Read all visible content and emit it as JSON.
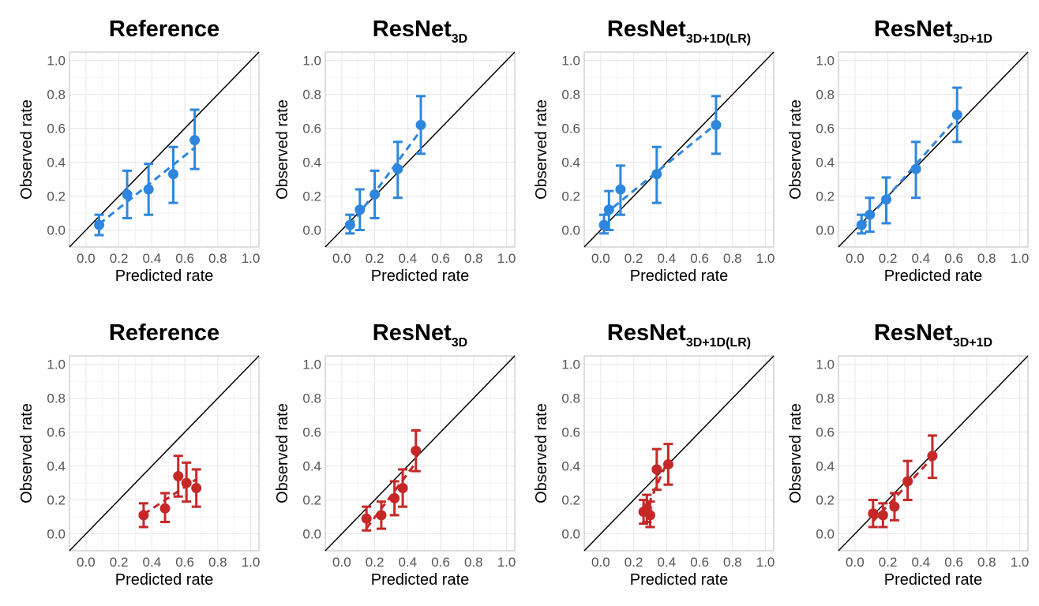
{
  "chart_data": [
    {
      "type": "scatter",
      "title": "Reference",
      "title_sub": "",
      "xlabel": "Predicted rate",
      "ylabel": "Observed rate",
      "xlim": [
        -0.1,
        1.05
      ],
      "ylim": [
        -0.1,
        1.05
      ],
      "xticks": [
        "0.0",
        "0.2",
        "0.4",
        "0.6",
        "0.8",
        "1.0"
      ],
      "yticks": [
        "0.0",
        "0.2",
        "0.4",
        "0.6",
        "0.8",
        "1.0"
      ],
      "grid": true,
      "color": "#2E86DE",
      "series": [
        {
          "x": [
            0.08,
            0.25,
            0.38,
            0.53,
            0.66
          ],
          "y": [
            0.03,
            0.21,
            0.24,
            0.33,
            0.53
          ],
          "ylow": [
            -0.03,
            0.07,
            0.09,
            0.16,
            0.36
          ],
          "yhigh": [
            0.09,
            0.35,
            0.39,
            0.49,
            0.71
          ]
        }
      ]
    },
    {
      "type": "scatter",
      "title": "ResNet",
      "title_sub": "3D",
      "xlabel": "Predicted rate",
      "ylabel": "Observed rate",
      "xlim": [
        -0.1,
        1.05
      ],
      "ylim": [
        -0.1,
        1.05
      ],
      "xticks": [
        "0.0",
        "0.2",
        "0.4",
        "0.6",
        "0.8",
        "1.0"
      ],
      "yticks": [
        "0.0",
        "0.2",
        "0.4",
        "0.6",
        "0.8",
        "1.0"
      ],
      "grid": true,
      "color": "#2E86DE",
      "series": [
        {
          "x": [
            0.05,
            0.11,
            0.2,
            0.34,
            0.48
          ],
          "y": [
            0.03,
            0.12,
            0.21,
            0.36,
            0.62
          ],
          "ylow": [
            -0.02,
            0.0,
            0.07,
            0.19,
            0.45
          ],
          "yhigh": [
            0.09,
            0.24,
            0.35,
            0.52,
            0.79
          ]
        }
      ]
    },
    {
      "type": "scatter",
      "title": "ResNet",
      "title_sub": "3D+1D(LR)",
      "xlabel": "Predicted rate",
      "ylabel": "Observed rate",
      "xlim": [
        -0.1,
        1.05
      ],
      "ylim": [
        -0.1,
        1.05
      ],
      "xticks": [
        "0.0",
        "0.2",
        "0.4",
        "0.6",
        "0.8",
        "1.0"
      ],
      "yticks": [
        "0.0",
        "0.2",
        "0.4",
        "0.6",
        "0.8",
        "1.0"
      ],
      "grid": true,
      "color": "#2E86DE",
      "series": [
        {
          "x": [
            0.02,
            0.05,
            0.12,
            0.34,
            0.7
          ],
          "y": [
            0.03,
            0.12,
            0.24,
            0.33,
            0.62
          ],
          "ylow": [
            -0.02,
            0.0,
            0.09,
            0.16,
            0.45
          ],
          "yhigh": [
            0.09,
            0.23,
            0.38,
            0.49,
            0.79
          ]
        }
      ]
    },
    {
      "type": "scatter",
      "title": "ResNet",
      "title_sub": "3D+1D",
      "xlabel": "Predicted rate",
      "ylabel": "Observed rate",
      "xlim": [
        -0.1,
        1.05
      ],
      "ylim": [
        -0.1,
        1.05
      ],
      "xticks": [
        "0.0",
        "0.2",
        "0.4",
        "0.6",
        "0.8",
        "1.0"
      ],
      "yticks": [
        "0.0",
        "0.2",
        "0.4",
        "0.6",
        "0.8",
        "1.0"
      ],
      "grid": true,
      "color": "#2E86DE",
      "series": [
        {
          "x": [
            0.04,
            0.09,
            0.19,
            0.37,
            0.62
          ],
          "y": [
            0.03,
            0.09,
            0.18,
            0.36,
            0.68
          ],
          "ylow": [
            -0.02,
            -0.01,
            0.04,
            0.19,
            0.52
          ],
          "yhigh": [
            0.09,
            0.19,
            0.31,
            0.52,
            0.84
          ]
        }
      ]
    },
    {
      "type": "scatter",
      "title": "Reference",
      "title_sub": "",
      "xlabel": "Predicted rate",
      "ylabel": "Observed rate",
      "xlim": [
        -0.1,
        1.05
      ],
      "ylim": [
        -0.1,
        1.05
      ],
      "xticks": [
        "0.0",
        "0.2",
        "0.4",
        "0.6",
        "0.8",
        "1.0"
      ],
      "yticks": [
        "0.0",
        "0.2",
        "0.4",
        "0.6",
        "0.8",
        "1.0"
      ],
      "grid": true,
      "color": "#C62828",
      "series": [
        {
          "x": [
            0.35,
            0.48,
            0.56,
            0.61,
            0.67
          ],
          "y": [
            0.11,
            0.15,
            0.34,
            0.3,
            0.27
          ],
          "ylow": [
            0.04,
            0.07,
            0.22,
            0.19,
            0.16
          ],
          "yhigh": [
            0.18,
            0.24,
            0.46,
            0.42,
            0.38
          ]
        }
      ]
    },
    {
      "type": "scatter",
      "title": "ResNet",
      "title_sub": "3D",
      "xlabel": "Predicted rate",
      "ylabel": "Observed rate",
      "xlim": [
        -0.1,
        1.05
      ],
      "ylim": [
        -0.1,
        1.05
      ],
      "xticks": [
        "0.0",
        "0.2",
        "0.4",
        "0.6",
        "0.8",
        "1.0"
      ],
      "yticks": [
        "0.0",
        "0.2",
        "0.4",
        "0.6",
        "0.8",
        "1.0"
      ],
      "grid": true,
      "color": "#C62828",
      "series": [
        {
          "x": [
            0.15,
            0.24,
            0.32,
            0.37,
            0.45
          ],
          "y": [
            0.09,
            0.11,
            0.21,
            0.27,
            0.49
          ],
          "ylow": [
            0.02,
            0.03,
            0.11,
            0.16,
            0.37
          ],
          "yhigh": [
            0.16,
            0.19,
            0.31,
            0.38,
            0.61
          ]
        }
      ]
    },
    {
      "type": "scatter",
      "title": "ResNet",
      "title_sub": "3D+1D(LR)",
      "xlabel": "Predicted rate",
      "ylabel": "Observed rate",
      "xlim": [
        -0.1,
        1.05
      ],
      "ylim": [
        -0.1,
        1.05
      ],
      "xticks": [
        "0.0",
        "0.2",
        "0.4",
        "0.6",
        "0.8",
        "1.0"
      ],
      "yticks": [
        "0.0",
        "0.2",
        "0.4",
        "0.6",
        "0.8",
        "1.0"
      ],
      "grid": true,
      "color": "#C62828",
      "series": [
        {
          "x": [
            0.26,
            0.28,
            0.3,
            0.34,
            0.41
          ],
          "y": [
            0.13,
            0.15,
            0.11,
            0.38,
            0.41
          ],
          "ylow": [
            0.06,
            0.07,
            0.04,
            0.26,
            0.29
          ],
          "yhigh": [
            0.2,
            0.23,
            0.19,
            0.5,
            0.53
          ]
        }
      ]
    },
    {
      "type": "scatter",
      "title": "ResNet",
      "title_sub": "3D+1D",
      "xlabel": "Predicted rate",
      "ylabel": "Observed rate",
      "xlim": [
        -0.1,
        1.05
      ],
      "ylim": [
        -0.1,
        1.05
      ],
      "xticks": [
        "0.0",
        "0.2",
        "0.4",
        "0.6",
        "0.8",
        "1.0"
      ],
      "yticks": [
        "0.0",
        "0.2",
        "0.4",
        "0.6",
        "0.8",
        "1.0"
      ],
      "grid": true,
      "color": "#C62828",
      "series": [
        {
          "x": [
            0.11,
            0.17,
            0.24,
            0.32,
            0.47
          ],
          "y": [
            0.12,
            0.11,
            0.16,
            0.31,
            0.46
          ],
          "ylow": [
            0.04,
            0.04,
            0.08,
            0.2,
            0.33
          ],
          "yhigh": [
            0.2,
            0.18,
            0.24,
            0.43,
            0.58
          ]
        }
      ]
    }
  ]
}
